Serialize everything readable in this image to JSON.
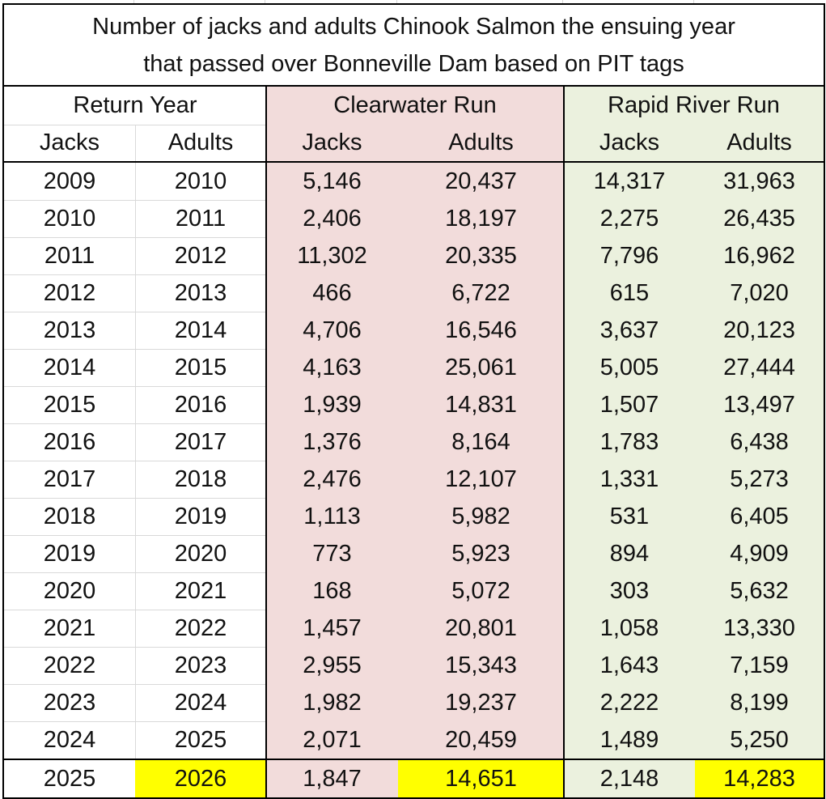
{
  "title": {
    "line1": "Number of jacks and adults Chinook Salmon the ensuing year",
    "line2": "that passed over Bonneville Dam based on PIT tags"
  },
  "groups": [
    {
      "label": "Return Year",
      "color": "#ffffff"
    },
    {
      "label": "Clearwater Run",
      "color": "#f2dcdb"
    },
    {
      "label": "Rapid River Run",
      "color": "#ebf1de"
    }
  ],
  "subheaders": [
    "Jacks",
    "Adults",
    "Jacks",
    "Adults",
    "Jacks",
    "Adults"
  ],
  "rows": [
    [
      "2009",
      "2010",
      "5,146",
      "20,437",
      "14,317",
      "31,963"
    ],
    [
      "2010",
      "2011",
      "2,406",
      "18,197",
      "2,275",
      "26,435"
    ],
    [
      "2011",
      "2012",
      "11,302",
      "20,335",
      "7,796",
      "16,962"
    ],
    [
      "2012",
      "2013",
      "466",
      "6,722",
      "615",
      "7,020"
    ],
    [
      "2013",
      "2014",
      "4,706",
      "16,546",
      "3,637",
      "20,123"
    ],
    [
      "2014",
      "2015",
      "4,163",
      "25,061",
      "5,005",
      "27,444"
    ],
    [
      "2015",
      "2016",
      "1,939",
      "14,831",
      "1,507",
      "13,497"
    ],
    [
      "2016",
      "2017",
      "1,376",
      "8,164",
      "1,783",
      "6,438"
    ],
    [
      "2017",
      "2018",
      "2,476",
      "12,107",
      "1,331",
      "5,273"
    ],
    [
      "2018",
      "2019",
      "1,113",
      "5,982",
      "531",
      "6,405"
    ],
    [
      "2019",
      "2020",
      "773",
      "5,923",
      "894",
      "4,909"
    ],
    [
      "2020",
      "2021",
      "168",
      "5,072",
      "303",
      "5,632"
    ],
    [
      "2021",
      "2022",
      "1,457",
      "20,801",
      "1,058",
      "13,330"
    ],
    [
      "2022",
      "2023",
      "2,955",
      "15,343",
      "1,643",
      "7,159"
    ],
    [
      "2023",
      "2024",
      "1,982",
      "19,237",
      "2,222",
      "8,199"
    ],
    [
      "2024",
      "2025",
      "2,071",
      "20,459",
      "1,489",
      "5,250"
    ]
  ],
  "final_row": [
    "2025",
    "2026",
    "1,847",
    "14,651",
    "2,148",
    "14,283"
  ],
  "final_row_highlight_cols": [
    1,
    3,
    5
  ],
  "colors": {
    "clearwater_fill": "#f2dcdb",
    "rapid_river_fill": "#ebf1de",
    "highlight": "#ffff00"
  }
}
